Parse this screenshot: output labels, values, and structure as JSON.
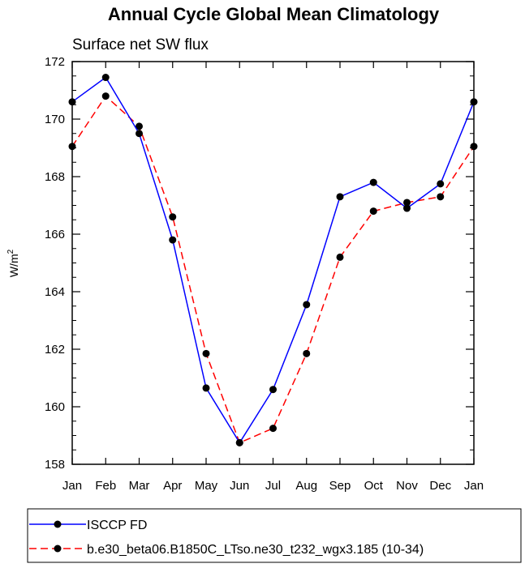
{
  "chart_data": {
    "type": "line",
    "title": "Annual Cycle Global Mean Climatology",
    "subtitle": "Surface net SW flux",
    "ylabel": "W/m",
    "ylabel_sup": "2",
    "xlabel": "",
    "categories": [
      "Jan",
      "Feb",
      "Mar",
      "Apr",
      "May",
      "Jun",
      "Jul",
      "Aug",
      "Sep",
      "Oct",
      "Nov",
      "Dec",
      "Jan"
    ],
    "ylim": [
      158,
      172
    ],
    "yticks": [
      "158",
      "160",
      "162",
      "164",
      "166",
      "168",
      "170",
      "172"
    ],
    "series": [
      {
        "name": "ISCCP FD",
        "color": "#0000ff",
        "style": "solid",
        "values": [
          170.6,
          171.45,
          169.5,
          165.8,
          160.65,
          158.75,
          160.6,
          163.55,
          167.3,
          167.8,
          166.9,
          167.75,
          170.6
        ]
      },
      {
        "name": "b.e30_beta06.B1850C_LTso.ne30_t232_wgx3.185 (10-34)",
        "color": "#ff0000",
        "style": "dashed",
        "values": [
          169.05,
          170.8,
          169.75,
          166.6,
          161.85,
          158.75,
          159.25,
          161.85,
          165.2,
          166.8,
          167.1,
          167.3,
          169.05
        ]
      }
    ]
  }
}
